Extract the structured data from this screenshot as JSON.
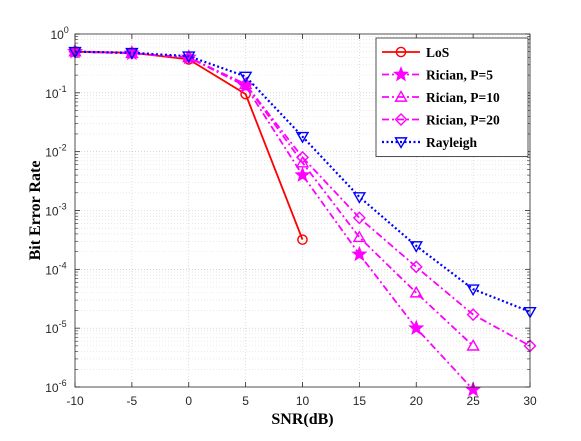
{
  "chart_data": {
    "type": "line",
    "title": "",
    "xlabel": "SNR(dB)",
    "ylabel": "Bit Error Rate",
    "xlim": [
      -10,
      30
    ],
    "ylim": [
      1e-06,
      1
    ],
    "yscale": "log",
    "grid": true,
    "legend_position": "top-right",
    "x_ticks": [
      "-10",
      "-5",
      "0",
      "5",
      "10",
      "15",
      "20",
      "25",
      "30"
    ],
    "y_ticks": [
      {
        "base": "10",
        "exp": "0"
      },
      {
        "base": "10",
        "exp": "-1"
      },
      {
        "base": "10",
        "exp": "-2"
      },
      {
        "base": "10",
        "exp": "-3"
      },
      {
        "base": "10",
        "exp": "-4"
      },
      {
        "base": "10",
        "exp": "-5"
      },
      {
        "base": "10",
        "exp": "-6"
      }
    ],
    "series": [
      {
        "name": "LoS",
        "color": "#ff0000",
        "line_style": "solid",
        "marker": "circle",
        "x": [
          -10,
          -5,
          0,
          5,
          10
        ],
        "y": [
          0.5,
          0.48,
          0.37,
          0.095,
          0.00032
        ]
      },
      {
        "name": "Rician, P=5",
        "color": "#ff00ff",
        "line_style": "dashdot",
        "marker": "star",
        "x": [
          -10,
          -5,
          0,
          5,
          10,
          15,
          20,
          25
        ],
        "y": [
          0.5,
          0.47,
          0.4,
          0.13,
          0.004,
          0.00018,
          1e-05,
          9e-07
        ]
      },
      {
        "name": "Rician, P=10",
        "color": "#ff00ff",
        "line_style": "dashdot",
        "marker": "triangle-up",
        "x": [
          -10,
          -5,
          0,
          5,
          10,
          15,
          20,
          25
        ],
        "y": [
          0.5,
          0.47,
          0.4,
          0.14,
          0.0065,
          0.00035,
          4e-05,
          5e-06
        ]
      },
      {
        "name": "Rician, P=20",
        "color": "#ff00ff",
        "line_style": "dashdot",
        "marker": "diamond",
        "x": [
          -10,
          -5,
          0,
          5,
          10,
          15,
          20,
          25,
          30
        ],
        "y": [
          0.5,
          0.47,
          0.4,
          0.14,
          0.008,
          0.00075,
          0.00011,
          1.7e-05,
          5e-06
        ]
      },
      {
        "name": "Rayleigh",
        "color": "#0000ff",
        "line_style": "dotted",
        "marker": "triangle-down",
        "x": [
          -10,
          -5,
          0,
          5,
          10,
          15,
          20,
          25,
          30
        ],
        "y": [
          0.5,
          0.48,
          0.42,
          0.19,
          0.018,
          0.0017,
          0.00025,
          4.6e-05,
          1.9e-05
        ]
      }
    ]
  }
}
